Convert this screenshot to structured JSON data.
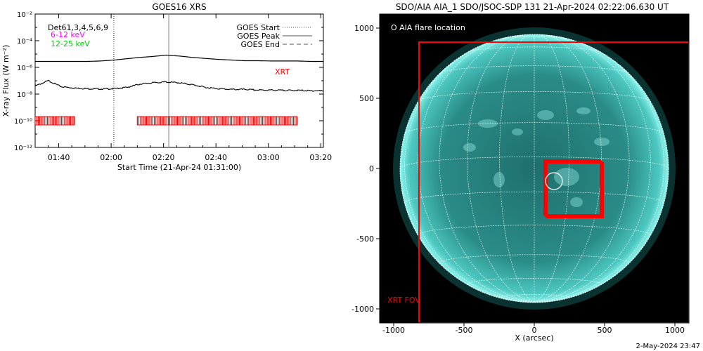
{
  "chart_data": [
    {
      "type": "line",
      "title": "GOES16 XRS",
      "xlabel": "Start Time (21-Apr-24 01:31:00)",
      "ylabel": "X-ray Flux (W m⁻²)",
      "x_ticks": [
        "01:40",
        "02:00",
        "02:20",
        "02:40",
        "03:00",
        "03:20"
      ],
      "y_ticks": [
        "10⁻¹²",
        "10⁻¹⁰",
        "10⁻⁸",
        "10⁻⁶",
        "10⁻⁴",
        "10⁻²"
      ],
      "xlim_minutes": [
        0,
        110
      ],
      "ylim_log10": [
        -12,
        -2
      ],
      "detectors_label": "Det61,3,4,5,6,9",
      "band_labels": [
        {
          "text": "6-12 keV",
          "color": "#ff00ff"
        },
        {
          "text": "12-25 keV",
          "color": "#00cc00"
        }
      ],
      "legend": [
        {
          "label": "GOES Start",
          "style": "dotted"
        },
        {
          "label": "GOES Peak",
          "style": "solid"
        },
        {
          "label": "GOES End",
          "style": "dashed"
        }
      ],
      "xrt_label": "XRT",
      "xrt_color": "#ff0000",
      "series": [
        {
          "name": "",
          "x": [
            0,
            5,
            10,
            15,
            20,
            25,
            30,
            35,
            40,
            45,
            50,
            55,
            60,
            65,
            70,
            75,
            80,
            85,
            90,
            95,
            100,
            105,
            110
          ],
          "y_log10": [
            -5.55,
            -5.55,
            -5.55,
            -5.55,
            -5.55,
            -5.52,
            -5.45,
            -5.35,
            -5.25,
            -5.18,
            -5.08,
            -5.15,
            -5.25,
            -5.33,
            -5.4,
            -5.45,
            -5.5,
            -5.5,
            -5.52,
            -5.52,
            -5.52,
            -5.55,
            -5.55
          ],
          "color": "#000000"
        },
        {
          "name": "",
          "x": [
            0,
            5,
            10,
            15,
            20,
            25,
            30,
            35,
            40,
            45,
            50,
            55,
            60,
            65,
            70,
            75,
            80,
            85,
            90,
            95,
            100,
            105,
            110
          ],
          "y_log10": [
            -7.4,
            -7.0,
            -7.45,
            -7.55,
            -7.6,
            -7.62,
            -7.6,
            -7.5,
            -7.25,
            -7.15,
            -7.1,
            -7.15,
            -7.3,
            -7.5,
            -7.6,
            -7.65,
            -7.65,
            -7.7,
            -7.7,
            -7.72,
            -7.72,
            -7.75,
            -7.75
          ],
          "color": "#000000"
        }
      ],
      "markers": [
        {
          "x": 30,
          "style": "dotted",
          "color": "#555555"
        },
        {
          "x": 51,
          "style": "solid",
          "color": "#999999"
        }
      ],
      "xrt_coverage": {
        "y_log10": -10.0,
        "intervals": [
          [
            0,
            15
          ],
          [
            39,
            100
          ]
        ],
        "color": "#ff0000"
      }
    },
    {
      "type": "image",
      "title": "SDO/AIA AIA_1 SDO/JSOC-SDP 131 21-Apr-2024 02:22:06.630 UT",
      "xlabel": "X (arcsec)",
      "ylabel": "",
      "x_ticks": [
        "-1000",
        "-500",
        "0",
        "500",
        "1000"
      ],
      "y_ticks": [
        "-1000",
        "-500",
        "0",
        "500",
        "1000"
      ],
      "xlim": [
        -1100,
        1100
      ],
      "ylim": [
        -1100,
        1100
      ],
      "solar_radius_arcsec": 955,
      "legend_text": "O AIA flare location",
      "flare_location": {
        "x": 140,
        "y": -90,
        "radius": 60
      },
      "xrt_fov_label": "XRT FOV",
      "xrt_fov": {
        "x0": -820,
        "x1": 1100,
        "y0": -1100,
        "y1": 900
      },
      "xrt_pointing_boxes": [
        {
          "x0": 70,
          "x1": 470,
          "y0": -330,
          "y1": 60
        },
        {
          "x0": 80,
          "x1": 480,
          "y0": -340,
          "y1": 50
        },
        {
          "x0": 90,
          "x1": 490,
          "y0": -350,
          "y1": 40
        }
      ],
      "colors": {
        "disk": "#2fa6a0",
        "background": "#000000",
        "grid": "#ffffff",
        "box": "#ff0000"
      }
    }
  ],
  "footer_timestamp": "2-May-2024 23:47"
}
